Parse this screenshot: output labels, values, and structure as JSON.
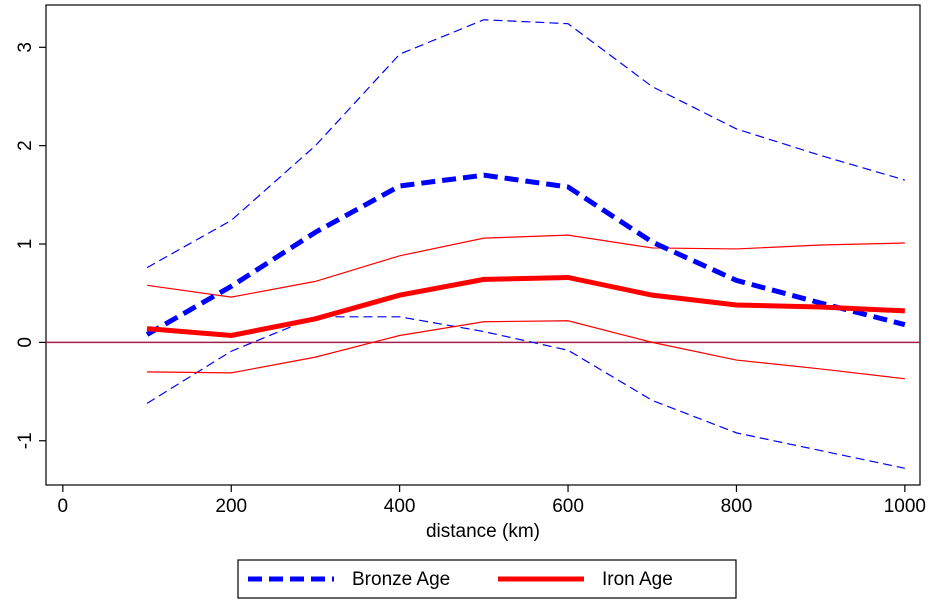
{
  "chart_data": {
    "type": "line",
    "x_label": "distance (km)",
    "x": [
      100,
      200,
      300,
      400,
      500,
      600,
      700,
      800,
      900,
      1000
    ],
    "series": [
      {
        "color": "#0000ff",
        "width": 1.2,
        "dashed": true,
        "values": [
          0.76,
          1.24,
          2.0,
          2.93,
          3.28,
          3.24,
          2.6,
          2.17,
          1.9,
          1.65
        ]
      },
      {
        "color": "#0000ff",
        "width": 1.2,
        "dashed": true,
        "values": [
          -0.62,
          -0.09,
          0.26,
          0.26,
          0.11,
          -0.08,
          -0.59,
          -0.92,
          -1.1,
          -1.28
        ]
      },
      {
        "color": "#ff0000",
        "width": 1.2,
        "dashed": false,
        "values": [
          0.58,
          0.46,
          0.62,
          0.88,
          1.06,
          1.09,
          0.96,
          0.95,
          0.99,
          1.01
        ]
      },
      {
        "color": "#ff0000",
        "width": 1.2,
        "dashed": false,
        "values": [
          -0.3,
          -0.31,
          -0.15,
          0.07,
          0.21,
          0.22,
          0.0,
          -0.18,
          -0.27,
          -0.37
        ]
      },
      {
        "name": "Bronze Age",
        "color": "#0000ff",
        "width": 5,
        "dashed": true,
        "values": [
          0.08,
          0.57,
          1.12,
          1.59,
          1.7,
          1.58,
          1.02,
          0.63,
          0.4,
          0.18
        ]
      },
      {
        "name": "Iron Age",
        "color": "#ff0000",
        "width": 5,
        "dashed": false,
        "values": [
          0.14,
          0.07,
          0.24,
          0.48,
          0.64,
          0.66,
          0.48,
          0.38,
          0.36,
          0.32
        ]
      }
    ],
    "hline": {
      "value": 0,
      "color": "#a0204a"
    },
    "xlim": [
      -20,
      1018
    ],
    "ylim": [
      -1.45,
      3.43
    ],
    "xticks": [
      0,
      200,
      400,
      600,
      800,
      1000
    ],
    "yticks": [
      -1,
      0,
      1,
      2,
      3
    ],
    "legend": "bottom"
  }
}
